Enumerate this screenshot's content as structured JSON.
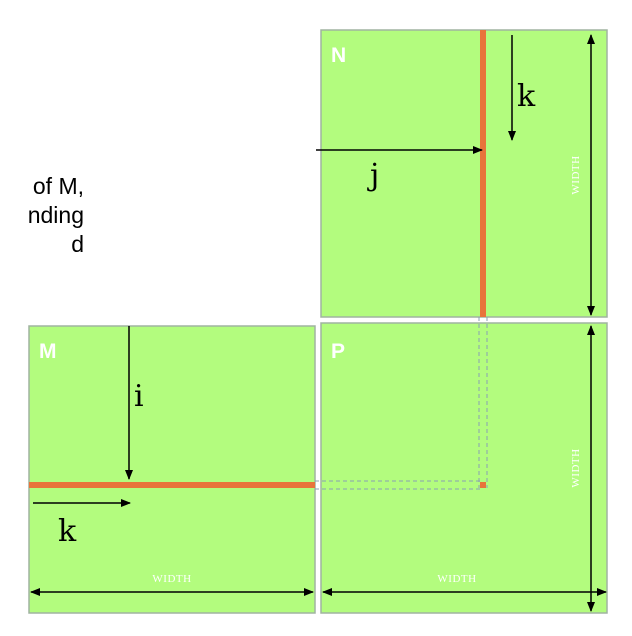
{
  "caption_lines": [
    "of M,",
    "nding",
    "d"
  ],
  "matrices": {
    "n": {
      "label": "N",
      "width_label": "WIDTH"
    },
    "m": {
      "label": "M",
      "width_label": "WIDTH"
    },
    "p": {
      "label": "P",
      "width_label": "WIDTH",
      "height_label": "WIDTH"
    }
  },
  "n_height_label": "WIDTH",
  "index_labels": {
    "n_k": "k",
    "n_j": "j",
    "m_i": "i",
    "m_k": "k"
  },
  "colors": {
    "matrix_fill": "#b3fc7e",
    "matrix_border": "#a0b4a0",
    "highlight": "#e8743b",
    "guide_dash": "#8aa0b4"
  }
}
